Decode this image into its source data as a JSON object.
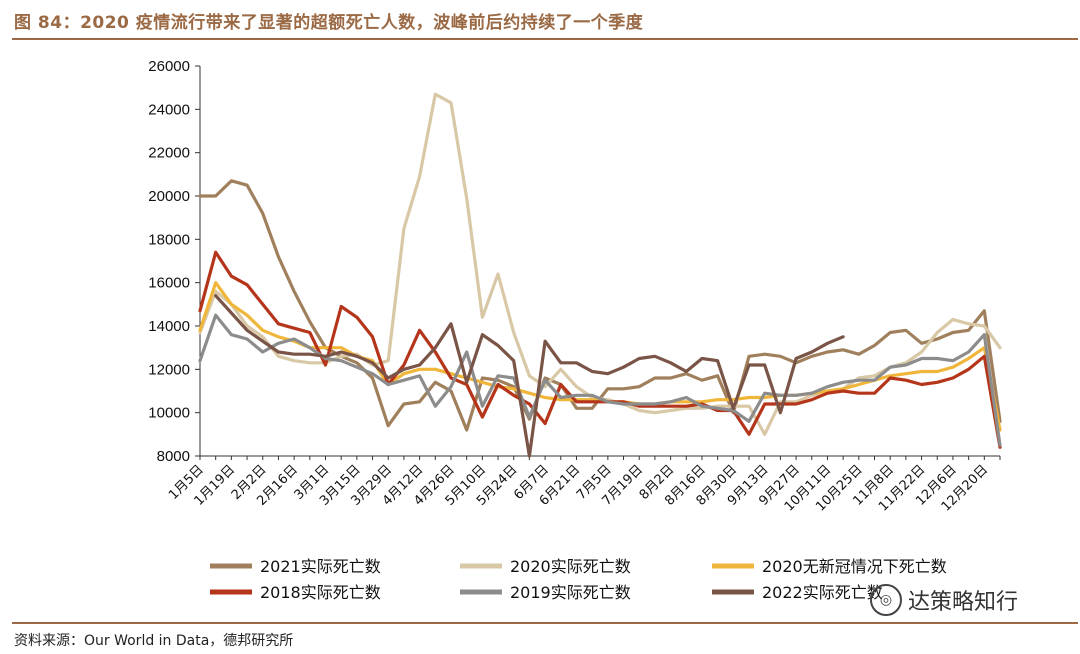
{
  "header": {
    "title": "图 84：2020 疫情流行带来了显著的超额死亡人数，波峰前后约持续了一个季度"
  },
  "footer": {
    "source": "资料来源：Our World in Data，德邦研究所"
  },
  "watermark": {
    "text": "达策略知行",
    "icon": "wechat-icon"
  },
  "colors": {
    "axis": "#333333",
    "brand": "#9b6a45"
  },
  "chart_data": {
    "type": "line",
    "title": "",
    "xlabel": "",
    "ylabel": "",
    "ylim": [
      8000,
      26000
    ],
    "yticks": [
      8000,
      10000,
      12000,
      14000,
      16000,
      18000,
      20000,
      22000,
      24000,
      26000
    ],
    "xtick_labels": [
      "1月5日",
      "1月19日",
      "2月2日",
      "2月16日",
      "3月1日",
      "3月15日",
      "3月29日",
      "4月12日",
      "4月26日",
      "5月10日",
      "5月24日",
      "6月7日",
      "6月21日",
      "7月5日",
      "7月19日",
      "8月2日",
      "8月16日",
      "8月30日",
      "9月13日",
      "9月27日",
      "10月11日",
      "10月25日",
      "11月8日",
      "11月22日",
      "12月6日",
      "12月20日"
    ],
    "legend_position": "bottom",
    "series": [
      {
        "name": "2021实际死亡数",
        "color": "#a0805c",
        "values": [
          20000,
          20000,
          20700,
          20500,
          19200,
          17200,
          15600,
          14200,
          13000,
          12600,
          12300,
          11600,
          9400,
          10400,
          10500,
          11400,
          11000,
          9200,
          11600,
          11500,
          11200,
          9700,
          11600,
          11300,
          10200,
          10200,
          11100,
          11100,
          11200,
          11600,
          11600,
          11800,
          11500,
          11700,
          10000,
          12600,
          12700,
          12600,
          12300,
          12600,
          12800,
          12900,
          12700,
          13100,
          13700,
          13800,
          13200,
          13400,
          13700,
          13800,
          14700,
          9600
        ]
      },
      {
        "name": "2020实际死亡数",
        "color": "#d8c8a6",
        "values": [
          13700,
          15600,
          15000,
          14000,
          13500,
          12600,
          12400,
          12300,
          12300,
          12600,
          12700,
          12200,
          12400,
          18500,
          20900,
          24700,
          24300,
          19900,
          14400,
          16400,
          13700,
          11700,
          11200,
          12000,
          11200,
          10700,
          10600,
          10400,
          10100,
          10000,
          10100,
          10200,
          10200,
          10300,
          10300,
          10300,
          9000,
          10500,
          10500,
          10800,
          10900,
          11100,
          11600,
          11700,
          12100,
          12300,
          12800,
          13700,
          14300,
          14100,
          14000,
          13000
        ]
      },
      {
        "name": "2020无新冠情况下死亡数",
        "color": "#f0b63a",
        "values": [
          13800,
          16000,
          15000,
          14500,
          13800,
          13500,
          13300,
          13000,
          13000,
          13000,
          12600,
          12400,
          11300,
          11800,
          12000,
          12000,
          11800,
          11600,
          11400,
          11200,
          11100,
          10900,
          10700,
          10600,
          10600,
          10600,
          10500,
          10500,
          10400,
          10400,
          10500,
          10500,
          10500,
          10600,
          10600,
          10700,
          10700,
          10800,
          10800,
          10900,
          11000,
          11100,
          11300,
          11500,
          11700,
          11800,
          11900,
          11900,
          12100,
          12500,
          13000,
          9200
        ]
      },
      {
        "name": "2018实际死亡数",
        "color": "#b5351a",
        "values": [
          14700,
          17400,
          16300,
          15900,
          15000,
          14100,
          13900,
          13700,
          12200,
          14900,
          14400,
          13500,
          11300,
          12200,
          13800,
          12800,
          11600,
          11300,
          9800,
          11300,
          10800,
          10400,
          9500,
          11300,
          10500,
          10500,
          10500,
          10500,
          10300,
          10300,
          10300,
          10300,
          10400,
          10100,
          10100,
          9000,
          10400,
          10400,
          10400,
          10600,
          10900,
          11000,
          10900,
          10900,
          11600,
          11500,
          11300,
          11400,
          11600,
          12000,
          12600,
          8400
        ]
      },
      {
        "name": "2019实际死亡数",
        "color": "#8c8c8c",
        "values": [
          12400,
          14500,
          13600,
          13400,
          12800,
          13200,
          13400,
          13000,
          12500,
          12400,
          12100,
          11800,
          11300,
          11500,
          11700,
          10300,
          11200,
          12800,
          10300,
          11700,
          11600,
          9800,
          11500,
          10700,
          10800,
          10800,
          10500,
          10400,
          10400,
          10400,
          10500,
          10700,
          10300,
          10200,
          10100,
          9600,
          10900,
          10800,
          10800,
          10900,
          11200,
          11400,
          11500,
          11500,
          12100,
          12200,
          12500,
          12500,
          12400,
          12800,
          13600,
          8500
        ]
      },
      {
        "name": "2022实际死亡数",
        "color": "#7a5446",
        "values": [
          null,
          15400,
          14600,
          13800,
          13300,
          12800,
          12700,
          12700,
          12600,
          12800,
          12600,
          12300,
          11600,
          12000,
          12200,
          13000,
          14100,
          11400,
          13600,
          13100,
          12400,
          8000,
          13300,
          12300,
          12300,
          11900,
          11800,
          12100,
          12500,
          12600,
          12300,
          11900,
          12500,
          12400,
          10200,
          12200,
          12200,
          10000,
          12500,
          12800,
          13200,
          13500,
          null,
          null,
          null,
          null,
          null,
          null,
          null,
          null,
          null,
          null
        ]
      }
    ]
  }
}
